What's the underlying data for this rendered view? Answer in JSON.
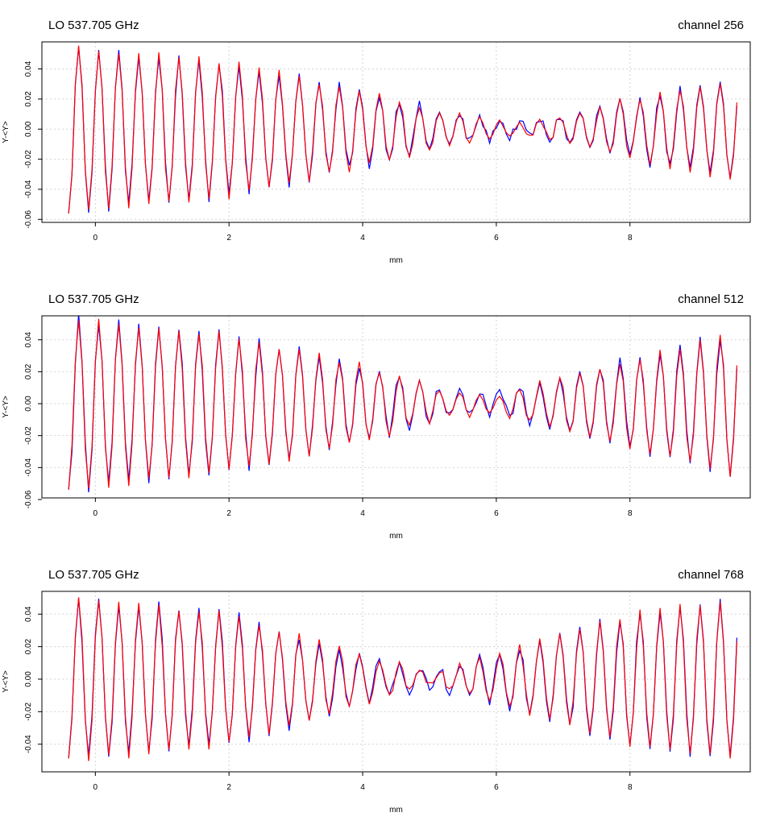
{
  "chart_data": [
    {
      "type": "line",
      "title": "LO 537.705 GHz",
      "subtitle": "channel 256",
      "xlabel": "mm",
      "ylabel": "Y-<Y>",
      "xlim": [
        -0.8,
        9.8
      ],
      "ylim": [
        -0.062,
        0.058
      ],
      "xticks": [
        0,
        2,
        4,
        6,
        8
      ],
      "xtick_labels": [
        "0",
        "2",
        "4",
        "6",
        "8"
      ],
      "yticks": [
        -0.06,
        -0.04,
        -0.02,
        0.0,
        0.02,
        0.04
      ],
      "ytick_labels": [
        "-0.06",
        "-0.04",
        "-0.02",
        "0.00",
        "0.02",
        "0.04"
      ],
      "grid": true,
      "x_start": -0.4,
      "x_end": 9.6,
      "n_points": 201,
      "period_mm": 0.3,
      "envelope_mm": [
        -0.4,
        0,
        2,
        4,
        5.5,
        6.5,
        8,
        9.6
      ],
      "envelope_amp": [
        0.057,
        0.053,
        0.045,
        0.025,
        0.009,
        0.004,
        0.02,
        0.034
      ],
      "series": [
        {
          "color": "#0000ff",
          "noise": 0.003
        },
        {
          "color": "#ff0000",
          "noise": 0.002
        }
      ]
    },
    {
      "type": "line",
      "title": "LO 537.705 GHz",
      "subtitle": "channel 512",
      "xlabel": "mm",
      "ylabel": "Y-<Y>",
      "xlim": [
        -0.8,
        9.8
      ],
      "ylim": [
        -0.059,
        0.055
      ],
      "xticks": [
        0,
        2,
        4,
        6,
        8
      ],
      "xtick_labels": [
        "0",
        "2",
        "4",
        "6",
        "8"
      ],
      "yticks": [
        -0.06,
        -0.04,
        -0.02,
        0.0,
        0.02,
        0.04
      ],
      "ytick_labels": [
        "-0.06",
        "-0.04",
        "-0.02",
        "0.00",
        "0.02",
        "0.04"
      ],
      "grid": true,
      "x_start": -0.4,
      "x_end": 9.6,
      "n_points": 201,
      "period_mm": 0.3,
      "envelope_mm": [
        -0.4,
        0,
        2,
        4,
        5.3,
        6.0,
        8,
        9.6
      ],
      "envelope_amp": [
        0.055,
        0.052,
        0.043,
        0.024,
        0.008,
        0.006,
        0.028,
        0.045
      ],
      "series": [
        {
          "color": "#0000ff",
          "noise": 0.003
        },
        {
          "color": "#ff0000",
          "noise": 0.002
        }
      ]
    },
    {
      "type": "line",
      "title": "LO 537.705 GHz",
      "subtitle": "channel 768",
      "xlabel": "mm",
      "ylabel": "Y-<Y>",
      "xlim": [
        -0.8,
        9.8
      ],
      "ylim": [
        -0.057,
        0.054
      ],
      "xticks": [
        0,
        2,
        4,
        6,
        8
      ],
      "xtick_labels": [
        "0",
        "2",
        "4",
        "6",
        "8"
      ],
      "yticks": [
        -0.04,
        -0.02,
        0.0,
        0.02,
        0.04
      ],
      "ytick_labels": [
        "-0.04",
        "-0.02",
        "0.00",
        "0.02",
        "0.04"
      ],
      "grid": true,
      "x_start": -0.4,
      "x_end": 9.6,
      "n_points": 201,
      "period_mm": 0.3,
      "envelope_mm": [
        -0.4,
        0,
        2,
        4,
        5.0,
        6.0,
        8,
        9.6
      ],
      "envelope_amp": [
        0.05,
        0.049,
        0.04,
        0.015,
        0.004,
        0.015,
        0.04,
        0.05
      ],
      "series": [
        {
          "color": "#0000ff",
          "noise": 0.003
        },
        {
          "color": "#ff0000",
          "noise": 0.002
        }
      ]
    }
  ]
}
